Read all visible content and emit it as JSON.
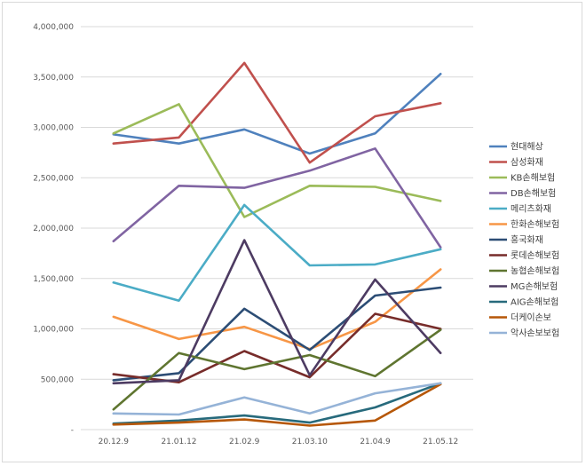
{
  "chart_data": {
    "type": "line",
    "title": "",
    "xlabel": "",
    "ylabel": "",
    "ylim": [
      0,
      4000000
    ],
    "y_ticks": [
      "-",
      "500,000",
      "1,000,000",
      "1,500,000",
      "2,000,000",
      "2,500,000",
      "3,000,000",
      "3,500,000",
      "4,000,000"
    ],
    "categories": [
      "20.12.9",
      "21.01.12",
      "21.02.9",
      "21.03.10",
      "21.04.9",
      "21.05.12"
    ],
    "grid": true,
    "legend": "right",
    "series": [
      {
        "name": "현대해상",
        "color": "#4f81bd",
        "values": [
          2930000,
          2840000,
          2980000,
          2740000,
          2940000,
          3530000
        ]
      },
      {
        "name": "삼성화재",
        "color": "#c0504d",
        "values": [
          2840000,
          2900000,
          3640000,
          2650000,
          3110000,
          3240000
        ]
      },
      {
        "name": "KB손해보험",
        "color": "#9bbb59",
        "values": [
          2940000,
          3230000,
          2110000,
          2420000,
          2410000,
          2270000
        ]
      },
      {
        "name": "DB손해보험",
        "color": "#8064a2",
        "values": [
          1870000,
          2420000,
          2400000,
          2570000,
          2790000,
          1810000
        ]
      },
      {
        "name": "메리츠화재",
        "color": "#4bacc6",
        "values": [
          1460000,
          1280000,
          2230000,
          1630000,
          1640000,
          1790000
        ]
      },
      {
        "name": "한화손해보험",
        "color": "#f79646",
        "values": [
          1120000,
          900000,
          1020000,
          800000,
          1070000,
          1590000
        ]
      },
      {
        "name": "흥국화재",
        "color": "#2c4d75",
        "values": [
          490000,
          560000,
          1200000,
          790000,
          1330000,
          1410000
        ]
      },
      {
        "name": "롯데손해보험",
        "color": "#772c2a",
        "values": [
          550000,
          470000,
          780000,
          520000,
          1150000,
          1000000
        ]
      },
      {
        "name": "농협손해보험",
        "color": "#5f7530",
        "values": [
          200000,
          760000,
          600000,
          740000,
          530000,
          990000
        ]
      },
      {
        "name": "MG손해보험",
        "color": "#4d3b62",
        "values": [
          460000,
          490000,
          1880000,
          540000,
          1490000,
          760000
        ]
      },
      {
        "name": "AIG손해보험",
        "color": "#276a7c",
        "values": [
          60000,
          90000,
          140000,
          70000,
          220000,
          460000
        ]
      },
      {
        "name": "더케이손보",
        "color": "#b65708",
        "values": [
          50000,
          70000,
          100000,
          40000,
          90000,
          450000
        ]
      },
      {
        "name": "악사손보보험",
        "color": "#95b3d7",
        "values": [
          160000,
          150000,
          320000,
          160000,
          360000,
          460000
        ]
      }
    ]
  }
}
